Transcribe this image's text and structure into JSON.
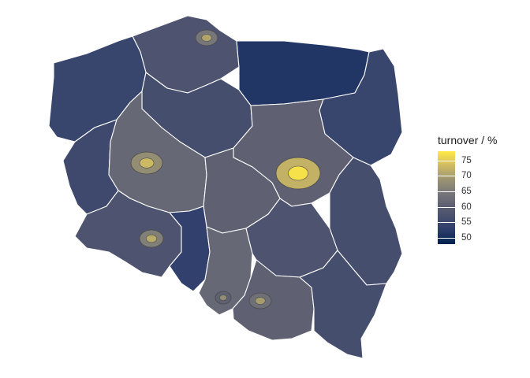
{
  "legend": {
    "title": "turnover / %",
    "ticks": [
      "75",
      "70",
      "65",
      "60",
      "55",
      "50"
    ]
  },
  "colors": {
    "scale_high": "#FFE945",
    "scale_mid": "#77777A",
    "scale_low": "#00204D",
    "voivodeship_border": "#ffffff",
    "county_border": "#4a4a4a"
  },
  "regions": [
    {
      "id": "pomorskie",
      "turnover": 58
    },
    {
      "id": "warminsko-mazurskie",
      "turnover": 52
    },
    {
      "id": "podlaskie",
      "turnover": 55
    },
    {
      "id": "zachodniopomorskie",
      "turnover": 55
    },
    {
      "id": "kujawsko-pomorskie",
      "turnover": 57
    },
    {
      "id": "lubuskie",
      "turnover": 56
    },
    {
      "id": "wielkopolskie",
      "turnover": 61
    },
    {
      "id": "mazowieckie",
      "turnover": 60
    },
    {
      "id": "lodzkie",
      "turnover": 60
    },
    {
      "id": "lubelskie",
      "turnover": 57
    },
    {
      "id": "dolnoslaskie",
      "turnover": 58
    },
    {
      "id": "opolskie",
      "turnover": 54
    },
    {
      "id": "slaskie",
      "turnover": 61
    },
    {
      "id": "swietokrzyskie",
      "turnover": 58
    },
    {
      "id": "malopolskie",
      "turnover": 60
    },
    {
      "id": "podkarpackie",
      "turnover": 57
    }
  ],
  "cities": [
    {
      "id": "warszawa",
      "turnover": 77
    },
    {
      "id": "poznan",
      "turnover": 72
    },
    {
      "id": "wroclaw",
      "turnover": 70
    },
    {
      "id": "gdansk",
      "turnover": 69
    },
    {
      "id": "krakow",
      "turnover": 68
    },
    {
      "id": "katowice",
      "turnover": 66
    }
  ]
}
